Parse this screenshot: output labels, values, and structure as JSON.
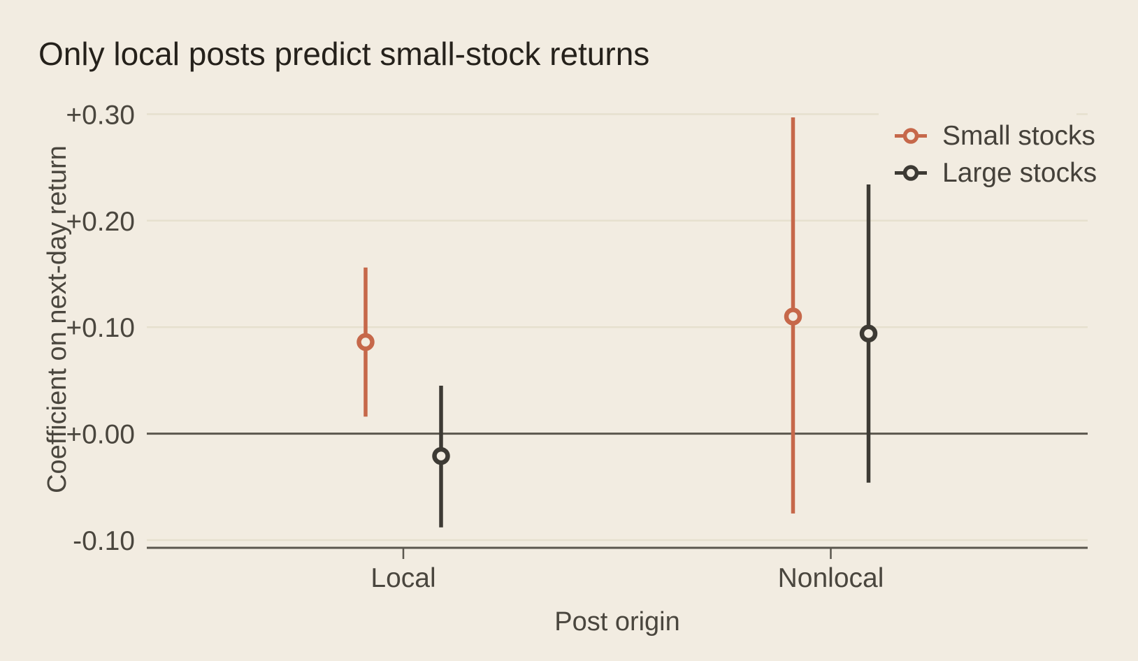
{
  "title": "Only local posts predict small-stock returns",
  "axes": {
    "y_label": "Coefficient on next-day return",
    "x_label": "Post origin"
  },
  "colors": {
    "background": "#f2ece1",
    "grid": "#e6e0ce",
    "zero_line": "#5b574e",
    "spine": "#5b574e",
    "tick_text": "#4a463e",
    "title_text": "#25211b",
    "legend_text": "#45413a",
    "small_stocks": "#c6684a",
    "large_stocks": "#3d3a34"
  },
  "chart_data": {
    "type": "scatter",
    "subtype": "point-estimates-with-error-bars",
    "title": "Only local posts predict small-stock returns",
    "xlabel": "Post origin",
    "ylabel": "Coefficient on next-day return",
    "categories": [
      "Local",
      "Nonlocal"
    ],
    "series": [
      {
        "name": "Small stocks",
        "color": "#c6684a",
        "estimates": [
          0.086,
          0.11
        ],
        "ci_low": [
          0.016,
          -0.075
        ],
        "ci_high": [
          0.156,
          0.297
        ]
      },
      {
        "name": "Large stocks",
        "color": "#3d3a34",
        "estimates": [
          -0.021,
          0.094
        ],
        "ci_low": [
          -0.088,
          -0.046
        ],
        "ci_high": [
          0.045,
          0.234
        ]
      }
    ],
    "yticks": [
      {
        "value": 0.3,
        "label": "+0.30"
      },
      {
        "value": 0.2,
        "label": "+0.20"
      },
      {
        "value": 0.1,
        "label": "+0.10"
      },
      {
        "value": 0.0,
        "label": "+0.00"
      },
      {
        "value": -0.1,
        "label": "-0.10"
      }
    ],
    "ylim": [
      -0.107,
      0.303
    ],
    "grid": "horizontal",
    "zero_line": true,
    "legend_position": "top-right",
    "legend_entries": [
      "Small stocks",
      "Large stocks"
    ]
  }
}
